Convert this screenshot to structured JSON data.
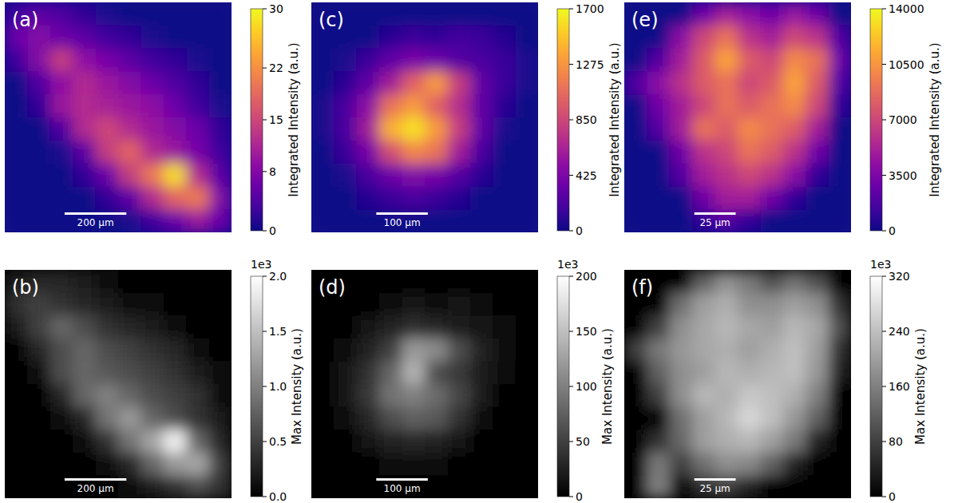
{
  "chart_data": [
    {
      "type": "heatmap",
      "label": "(a)",
      "color": "plasma",
      "xlim": [
        0,
        734
      ],
      "ylim": [
        0,
        734
      ],
      "tick_labels": false,
      "colorbar_label": "Integrated Intensity (a.u.)",
      "colorbar_lim": [
        0,
        30
      ],
      "colorbar_ticks": [
        0,
        8,
        15,
        22,
        30
      ],
      "scale_bar": {
        "value": 200,
        "label": "200 µm"
      },
      "cells": [
        [
          3,
          5,
          4,
          2,
          1,
          0,
          0,
          0,
          0,
          0
        ],
        [
          6,
          8,
          6,
          5,
          3,
          2,
          1,
          0,
          0,
          0
        ],
        [
          3,
          8,
          14,
          9,
          7,
          5,
          3,
          2,
          1,
          0
        ],
        [
          0,
          4,
          9,
          12,
          10,
          8,
          6,
          4,
          2,
          0
        ],
        [
          0,
          2,
          10,
          12,
          11,
          10,
          9,
          6,
          3,
          1
        ],
        [
          0,
          0,
          4,
          12,
          15,
          12,
          10,
          8,
          6,
          2
        ],
        [
          0,
          0,
          1,
          5,
          14,
          18,
          12,
          10,
          7,
          3
        ],
        [
          0,
          0,
          0,
          2,
          6,
          14,
          20,
          28,
          12,
          5
        ],
        [
          0,
          0,
          0,
          0,
          2,
          5,
          12,
          18,
          20,
          8
        ],
        [
          0,
          0,
          0,
          0,
          0,
          1,
          3,
          6,
          10,
          6
        ]
      ]
    },
    {
      "type": "heatmap",
      "label": "(b)",
      "color": "gray",
      "xlim": [
        0,
        734
      ],
      "ylim": [
        0,
        734
      ],
      "tick_labels": false,
      "colorbar_label": "Max Intensity (a.u.)",
      "colorbar_offset": "1e3",
      "colorbar_lim": [
        0,
        2
      ],
      "colorbar_ticks": [
        {
          "value": 0,
          "label": "0.0"
        },
        0.5,
        {
          "value": 1,
          "label": "1.0"
        },
        1.5,
        {
          "value": 2,
          "label": "2.0"
        }
      ],
      "scale_bar": {
        "value": 200,
        "label": "200 µm"
      },
      "cells": [
        [
          0.2,
          0.3,
          0.3,
          0.2,
          0.1,
          0,
          0,
          0,
          0,
          0
        ],
        [
          0.4,
          0.5,
          0.4,
          0.3,
          0.2,
          0.1,
          0.1,
          0,
          0,
          0
        ],
        [
          0.2,
          0.5,
          0.8,
          0.6,
          0.4,
          0.3,
          0.2,
          0.1,
          0,
          0
        ],
        [
          0,
          0.3,
          0.6,
          0.8,
          0.6,
          0.5,
          0.4,
          0.3,
          0.1,
          0
        ],
        [
          0,
          0.1,
          0.6,
          0.8,
          0.7,
          0.6,
          0.5,
          0.4,
          0.2,
          0.1
        ],
        [
          0,
          0,
          0.3,
          0.8,
          1.0,
          0.8,
          0.6,
          0.5,
          0.4,
          0.1
        ],
        [
          0,
          0,
          0.1,
          0.3,
          0.9,
          1.2,
          0.8,
          0.6,
          0.4,
          0.2
        ],
        [
          0,
          0,
          0,
          0.1,
          0.4,
          0.9,
          1.3,
          1.9,
          0.8,
          0.3
        ],
        [
          0,
          0,
          0,
          0,
          0.1,
          0.3,
          0.8,
          1.2,
          1.3,
          0.5
        ],
        [
          0,
          0,
          0,
          0,
          0,
          0.1,
          0.2,
          0.4,
          0.6,
          0.4
        ]
      ]
    },
    {
      "type": "heatmap",
      "label": "(c)",
      "color": "plasma",
      "xlim": [
        0,
        440
      ],
      "ylim": [
        0,
        440
      ],
      "tick_labels": false,
      "colorbar_label": "Integrated Intensity (a.u.)",
      "colorbar_lim": [
        0,
        1700
      ],
      "colorbar_ticks": [
        0,
        425,
        850,
        1275,
        1700
      ],
      "scale_bar": {
        "value": 100,
        "label": "100 µm"
      },
      "cells": [
        [
          0,
          0,
          0,
          0,
          0,
          0,
          0,
          0,
          0,
          0
        ],
        [
          0,
          0,
          0,
          100,
          150,
          120,
          180,
          150,
          80,
          0
        ],
        [
          0,
          50,
          150,
          300,
          400,
          350,
          250,
          200,
          150,
          60
        ],
        [
          0,
          100,
          300,
          600,
          1000,
          1300,
          800,
          300,
          150,
          50
        ],
        [
          50,
          200,
          500,
          1100,
          1300,
          1000,
          700,
          300,
          100,
          0
        ],
        [
          50,
          200,
          600,
          1400,
          1600,
          1300,
          800,
          300,
          50,
          0
        ],
        [
          0,
          150,
          400,
          900,
          1200,
          1100,
          600,
          200,
          0,
          0
        ],
        [
          0,
          50,
          200,
          350,
          450,
          400,
          250,
          100,
          0,
          0
        ],
        [
          0,
          0,
          80,
          150,
          200,
          150,
          80,
          0,
          0,
          0
        ],
        [
          0,
          0,
          0,
          0,
          0,
          0,
          0,
          0,
          0,
          0
        ]
      ]
    },
    {
      "type": "heatmap",
      "label": "(d)",
      "color": "gray",
      "xlim": [
        0,
        440
      ],
      "ylim": [
        0,
        440
      ],
      "tick_labels": false,
      "colorbar_label": "Max Intensity (a.u.)",
      "colorbar_offset": "1e3",
      "colorbar_lim": [
        0,
        200
      ],
      "colorbar_ticks": [
        0,
        50,
        100,
        150,
        200
      ],
      "scale_bar": {
        "value": 100,
        "label": "100 µm"
      },
      "cells": [
        [
          0,
          0,
          0,
          0,
          0,
          0,
          0,
          0,
          0,
          0
        ],
        [
          0,
          0,
          0,
          10,
          15,
          12,
          15,
          12,
          5,
          0
        ],
        [
          0,
          5,
          15,
          25,
          35,
          30,
          22,
          15,
          10,
          3
        ],
        [
          0,
          10,
          25,
          50,
          120,
          110,
          60,
          25,
          10,
          3
        ],
        [
          3,
          15,
          40,
          80,
          140,
          60,
          45,
          20,
          8,
          0
        ],
        [
          3,
          15,
          45,
          90,
          100,
          85,
          55,
          20,
          3,
          0
        ],
        [
          0,
          10,
          30,
          60,
          75,
          70,
          40,
          12,
          0,
          0
        ],
        [
          0,
          3,
          15,
          25,
          30,
          25,
          15,
          5,
          0,
          0
        ],
        [
          0,
          0,
          5,
          10,
          12,
          10,
          5,
          0,
          0,
          0
        ],
        [
          0,
          0,
          0,
          0,
          0,
          0,
          0,
          0,
          0,
          0
        ]
      ]
    },
    {
      "type": "heatmap",
      "label": "(e)",
      "color": "plasma",
      "xlim": [
        0,
        137
      ],
      "ylim": [
        0,
        137
      ],
      "tick_labels": false,
      "colorbar_label": "Integrated Intensity (a.u.)",
      "colorbar_lim": [
        0,
        14000
      ],
      "colorbar_ticks": [
        0,
        3500,
        7000,
        10500,
        14000
      ],
      "scale_bar": {
        "value": 25,
        "label": "25 µm"
      },
      "cells": [
        [
          0,
          0,
          0,
          3000,
          5000,
          4000,
          3000,
          4500,
          3000,
          0
        ],
        [
          0,
          0,
          4000,
          7000,
          9000,
          6000,
          5000,
          7000,
          6000,
          2000
        ],
        [
          0,
          2000,
          5000,
          8000,
          11000,
          8000,
          7000,
          10000,
          9000,
          3000
        ],
        [
          2000,
          4000,
          6000,
          8000,
          9000,
          7000,
          8000,
          11000,
          8000,
          2000
        ],
        [
          0,
          3000,
          5000,
          7000,
          9000,
          8000,
          9000,
          10000,
          7000,
          1000
        ],
        [
          0,
          2000,
          5000,
          9000,
          8000,
          10000,
          9000,
          8000,
          5000,
          0
        ],
        [
          0,
          0,
          3000,
          6000,
          7000,
          9000,
          8000,
          6000,
          3000,
          0
        ],
        [
          0,
          0,
          2000,
          5000,
          6000,
          7000,
          6000,
          4000,
          1000,
          0
        ],
        [
          0,
          0,
          0,
          3000,
          5000,
          5000,
          3000,
          1000,
          0,
          0
        ],
        [
          0,
          0,
          0,
          1000,
          2000,
          1000,
          0,
          0,
          0,
          0
        ]
      ]
    },
    {
      "type": "heatmap",
      "label": "(f)",
      "color": "gray",
      "xlim": [
        0,
        137
      ],
      "ylim": [
        0,
        137
      ],
      "tick_labels": false,
      "colorbar_label": "Max Intensity (a.u.)",
      "colorbar_offset": "1e3",
      "colorbar_lim": [
        0,
        320
      ],
      "colorbar_ticks": [
        0,
        80,
        160,
        240,
        320
      ],
      "scale_bar": {
        "value": 25,
        "label": "25 µm"
      },
      "cells": [
        [
          0,
          0,
          0,
          120,
          180,
          150,
          100,
          140,
          100,
          0
        ],
        [
          0,
          0,
          140,
          200,
          220,
          180,
          180,
          200,
          180,
          60
        ],
        [
          0,
          80,
          180,
          210,
          230,
          210,
          200,
          230,
          210,
          100
        ],
        [
          80,
          150,
          190,
          210,
          220,
          200,
          220,
          240,
          200,
          60
        ],
        [
          0,
          120,
          180,
          200,
          230,
          220,
          230,
          240,
          190,
          40
        ],
        [
          0,
          80,
          180,
          230,
          220,
          250,
          240,
          220,
          160,
          0
        ],
        [
          0,
          0,
          140,
          200,
          230,
          270,
          240,
          190,
          120,
          0
        ],
        [
          0,
          60,
          130,
          200,
          220,
          230,
          200,
          150,
          40,
          0
        ],
        [
          0,
          150,
          80,
          140,
          180,
          170,
          120,
          40,
          0,
          0
        ],
        [
          0,
          160,
          0,
          60,
          80,
          40,
          0,
          0,
          0,
          0
        ]
      ]
    }
  ]
}
